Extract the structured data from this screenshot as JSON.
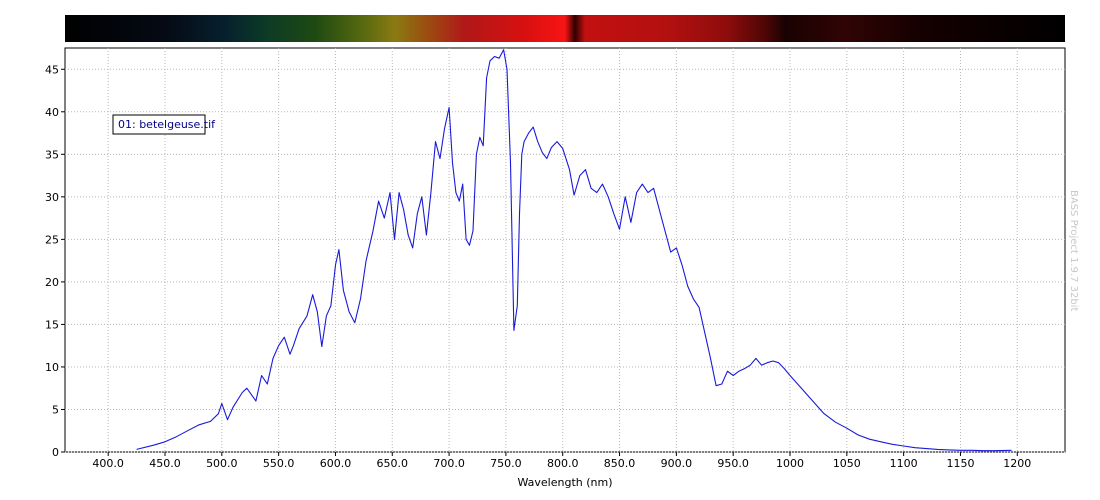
{
  "chart_data": {
    "type": "line",
    "title": "",
    "xlabel": "Wavelength (nm)",
    "ylabel": "",
    "xlim": [
      362,
      1242
    ],
    "ylim": [
      0,
      47.5
    ],
    "x_ticks": [
      {
        "value": 400,
        "label": "400.0"
      },
      {
        "value": 450,
        "label": "450.0"
      },
      {
        "value": 500,
        "label": "500.0"
      },
      {
        "value": 550,
        "label": "550.0"
      },
      {
        "value": 600,
        "label": "600.0"
      },
      {
        "value": 650,
        "label": "650.0"
      },
      {
        "value": 700,
        "label": "700.0"
      },
      {
        "value": 750,
        "label": "750.0"
      },
      {
        "value": 800,
        "label": "800.0"
      },
      {
        "value": 850,
        "label": "850.0"
      },
      {
        "value": 900,
        "label": "900.0"
      },
      {
        "value": 950,
        "label": "950.0"
      },
      {
        "value": 1000,
        "label": "1000"
      },
      {
        "value": 1050,
        "label": "1050"
      },
      {
        "value": 1100,
        "label": "1100"
      },
      {
        "value": 1150,
        "label": "1150"
      },
      {
        "value": 1200,
        "label": "1200"
      }
    ],
    "y_ticks": [
      {
        "value": 0,
        "label": "0"
      },
      {
        "value": 5,
        "label": "5"
      },
      {
        "value": 10,
        "label": "10"
      },
      {
        "value": 15,
        "label": "15"
      },
      {
        "value": 20,
        "label": "20"
      },
      {
        "value": 25,
        "label": "25"
      },
      {
        "value": 30,
        "label": "30"
      },
      {
        "value": 35,
        "label": "35"
      },
      {
        "value": 40,
        "label": "40"
      },
      {
        "value": 45,
        "label": "45"
      }
    ],
    "grid": true,
    "legend_position": "top-left",
    "series": [
      {
        "name": "01: betelgeuse.tif",
        "color": "#1a1adb",
        "x": [
          425,
          440,
          450,
          460,
          470,
          480,
          490,
          497,
          500,
          505,
          510,
          518,
          522,
          530,
          535,
          540,
          545,
          550,
          555,
          560,
          563,
          568,
          575,
          580,
          584,
          588,
          592,
          596,
          600,
          603,
          607,
          612,
          617,
          622,
          627,
          633,
          638,
          643,
          648,
          652,
          656,
          660,
          664,
          668,
          672,
          676,
          680,
          684,
          688,
          692,
          696,
          700,
          703,
          706,
          709,
          712,
          715,
          718,
          721,
          724,
          727,
          730,
          733,
          736,
          740,
          744,
          748,
          751,
          754,
          757,
          760,
          762,
          764,
          766,
          770,
          774,
          778,
          782,
          786,
          790,
          795,
          800,
          806,
          810,
          815,
          820,
          825,
          830,
          835,
          840,
          845,
          850,
          855,
          860,
          865,
          870,
          875,
          880,
          885,
          890,
          895,
          900,
          905,
          910,
          915,
          920,
          925,
          930,
          935,
          940,
          945,
          950,
          955,
          960,
          965,
          970,
          975,
          980,
          985,
          990,
          995,
          1000,
          1010,
          1020,
          1030,
          1040,
          1050,
          1060,
          1070,
          1080,
          1090,
          1100,
          1110,
          1120,
          1130,
          1140,
          1150,
          1160,
          1170,
          1180,
          1195
        ],
        "y": [
          0.3,
          0.8,
          1.2,
          1.8,
          2.5,
          3.2,
          3.6,
          4.5,
          5.7,
          3.8,
          5.3,
          7.0,
          7.5,
          6.0,
          9.0,
          8.0,
          11.0,
          12.5,
          13.5,
          11.5,
          12.5,
          14.5,
          16.0,
          18.5,
          16.5,
          12.4,
          16.0,
          17.2,
          22.0,
          23.8,
          19.0,
          16.5,
          15.2,
          18.0,
          22.5,
          26.0,
          29.5,
          27.5,
          30.5,
          25.0,
          30.5,
          28.5,
          25.5,
          24.0,
          28.0,
          30.0,
          25.5,
          30.5,
          36.5,
          34.5,
          38.0,
          40.5,
          34.0,
          30.5,
          29.5,
          31.5,
          25.0,
          24.3,
          26.0,
          35.0,
          37.0,
          36.0,
          44.0,
          46.0,
          46.5,
          46.3,
          47.3,
          45.0,
          34.0,
          14.3,
          17.2,
          28.0,
          35.0,
          36.5,
          37.5,
          38.2,
          36.5,
          35.2,
          34.5,
          35.8,
          36.5,
          35.7,
          33.2,
          30.2,
          32.5,
          33.2,
          31.0,
          30.5,
          31.5,
          30.0,
          28.0,
          26.2,
          30.0,
          27.0,
          30.5,
          31.5,
          30.5,
          31.0,
          28.5,
          26.0,
          23.5,
          24.0,
          22.0,
          19.5,
          18.0,
          17.0,
          14.0,
          11.0,
          7.8,
          8.0,
          9.5,
          9.0,
          9.5,
          9.8,
          10.2,
          11.0,
          10.2,
          10.5,
          10.7,
          10.5,
          9.8,
          9.0,
          7.5,
          6.0,
          4.5,
          3.5,
          2.8,
          2.0,
          1.5,
          1.2,
          0.9,
          0.7,
          0.5,
          0.4,
          0.3,
          0.25,
          0.2,
          0.2,
          0.15,
          0.15,
          0.2
        ]
      }
    ]
  },
  "watermark_text": "BASS Project 1.9.7  32bit"
}
